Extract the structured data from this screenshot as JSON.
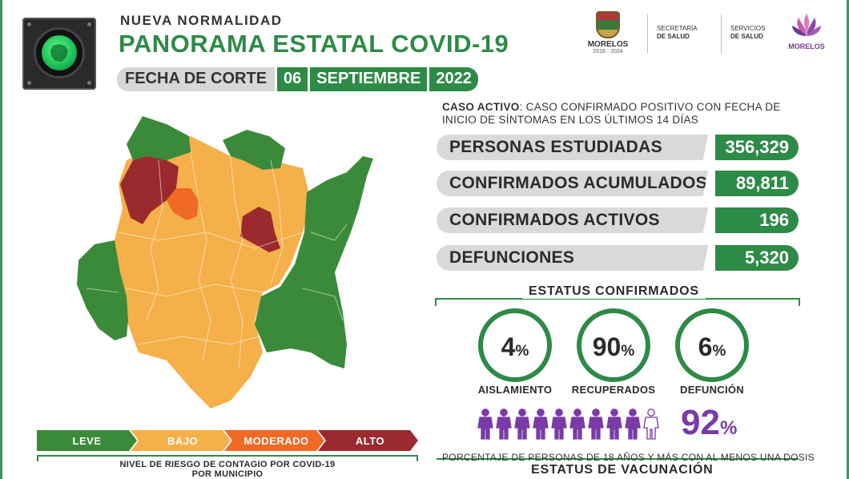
{
  "header": {
    "subtitle": "NUEVA NORMALIDAD",
    "title": "PANORAMA ESTATAL COVID-19",
    "fecha_label": "FECHA DE CORTE",
    "fecha_day": "06",
    "fecha_month": "SEPTIEMBRE",
    "fecha_year": "2022"
  },
  "logos": {
    "morelos_name": "MORELOS",
    "morelos_years": "2018 - 2024",
    "secretaria_line1": "SECRETARÍA",
    "secretaria_line2": "DE SALUD",
    "servicios_line1": "SERVICIOS",
    "servicios_line2": "DE SALUD",
    "flower_name": "MORELOS"
  },
  "caso_activo": {
    "term": "CASO ACTIVO",
    "definition": ": CASO CONFIRMADO POSITIVO CON FECHA DE INICIO DE SÍNTOMAS EN LOS ÚLTIMOS 14 DÍAS"
  },
  "stats": [
    {
      "label": "PERSONAS ESTUDIADAS",
      "value": "356,329"
    },
    {
      "label": "CONFIRMADOS ACUMULADOS",
      "value": "89,811"
    },
    {
      "label": "CONFIRMADOS ACTIVOS",
      "value": "196"
    },
    {
      "label": "DEFUNCIONES",
      "value": "5,320"
    }
  ],
  "estatus": {
    "title": "ESTATUS CONFIRMADOS",
    "items": [
      {
        "value": "4",
        "unit": "%",
        "label": "AISLAMIENTO"
      },
      {
        "value": "90",
        "unit": "%",
        "label": "RECUPERADOS"
      },
      {
        "value": "6",
        "unit": "%",
        "label": "DEFUNCIÓN"
      }
    ]
  },
  "vacunacion": {
    "value": "92",
    "unit": "%",
    "filled_people": 9,
    "total_people": 10,
    "note": "PORCENTAJE DE PERSONAS DE 18 AÑOS Y MÁS CON AL MENOS UNA DOSIS",
    "title": "ESTATUS DE VACUNACIÓN"
  },
  "legend": {
    "items": [
      {
        "label": "LEVE",
        "color": "#3a8a3a"
      },
      {
        "label": "BAJO",
        "color": "#f5b04a"
      },
      {
        "label": "MODERADO",
        "color": "#f06a26"
      },
      {
        "label": "ALTO",
        "color": "#9a2a2e"
      }
    ],
    "caption_pre": "NIVEL DE RIESGO DE CONTAGIO POR ",
    "caption_bold": "COVID-19",
    "caption_post": "POR MUNICIPIO"
  },
  "colors": {
    "accent_green": "#2e8a47",
    "gray_bar": "#d9d9d9",
    "purple": "#7a3aa8"
  }
}
